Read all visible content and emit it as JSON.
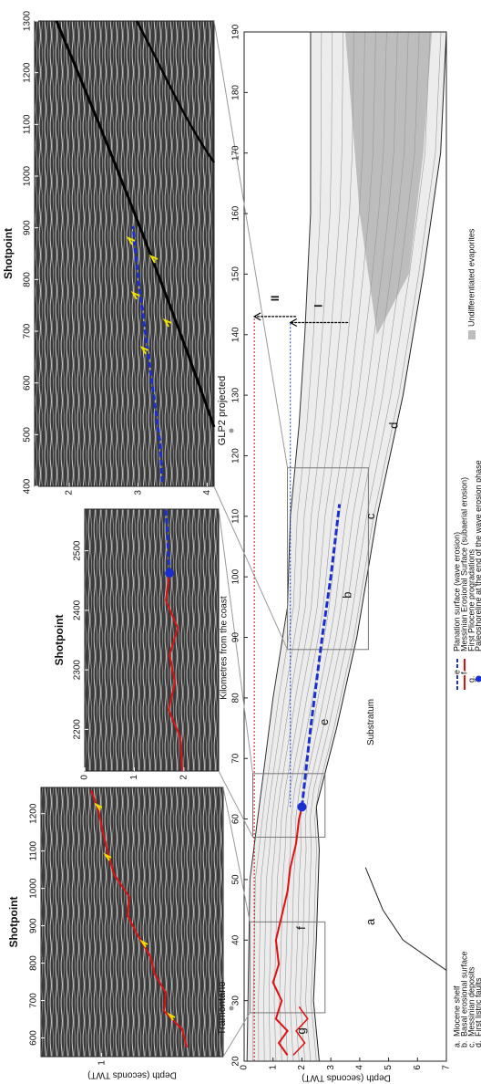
{
  "panels": [
    {
      "title": "Shotpoint",
      "x_ticks": [
        600,
        700,
        800,
        900,
        1000,
        1100,
        1200
      ],
      "y_label": "Depth (seconds TWT)",
      "y_ticks": [
        1
      ]
    },
    {
      "title": "Shotpoint",
      "x_ticks": [
        2200,
        2300,
        2400,
        2500
      ],
      "y_ticks": [
        0,
        1,
        2
      ]
    },
    {
      "title": "Shotpoint",
      "x_ticks": [
        400,
        500,
        600,
        700,
        800,
        900,
        1000,
        1100,
        1200,
        1300
      ],
      "y_ticks": [
        2,
        3,
        4
      ]
    }
  ],
  "section": {
    "x_label": "Kilometres from the coast",
    "x_ticks": [
      20,
      30,
      40,
      50,
      60,
      70,
      80,
      90,
      100,
      110,
      120,
      130,
      140,
      150,
      160,
      170,
      180,
      190
    ],
    "y_label": "Depth (seconds TWT)",
    "y_ticks": [
      0,
      1,
      2,
      3,
      4,
      5,
      6,
      7
    ],
    "places": [
      "Tramontane",
      "GLP2 projected"
    ],
    "letters": [
      "a",
      "b",
      "c",
      "d",
      "e",
      "f",
      "g"
    ],
    "substratum": "Substratum",
    "arrows": [
      "I",
      "II"
    ]
  },
  "legend": [
    {
      "key": "a.",
      "text": "Miocene shelf"
    },
    {
      "key": "b.",
      "text": "Basal erosional surface"
    },
    {
      "key": "c.",
      "text": "Messinian deposits"
    },
    {
      "key": "d.",
      "text": "First listric faults"
    },
    {
      "key": "e",
      "text": "Planation surface (wave erosion)"
    },
    {
      "key": "f",
      "text": "Messinian Erosional Surface (subaerial erosion)"
    },
    {
      "key": "g.",
      "text": "First Pliocene progradations"
    },
    {
      "text": "Paleoshoreline at the end of the wave erosion phase"
    },
    {
      "text": "Undifferentiated evaporites"
    }
  ]
}
